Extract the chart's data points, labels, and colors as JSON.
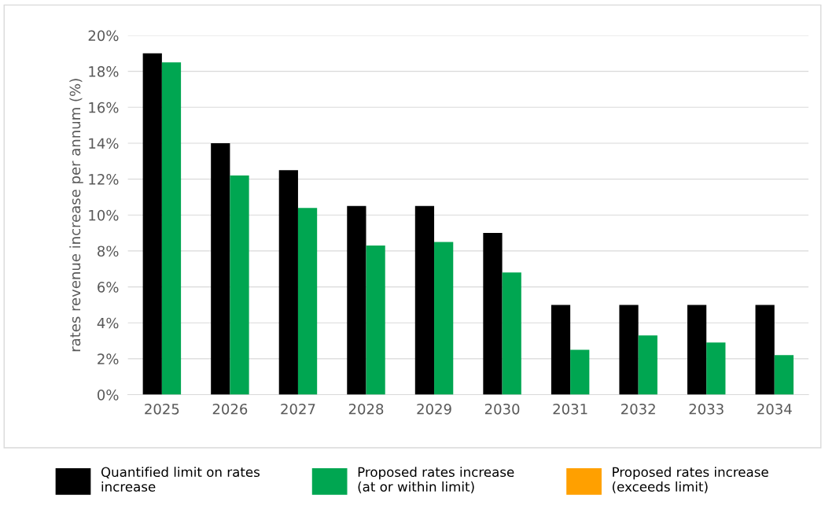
{
  "chart_data": {
    "type": "bar",
    "ylabel": "rates revenue increase per annum (%)",
    "categories": [
      "2025",
      "2026",
      "2027",
      "2028",
      "2029",
      "2030",
      "2031",
      "2032",
      "2033",
      "2034"
    ],
    "series": [
      {
        "name": "Quantified limit on rates\nincrease",
        "color": "#000000",
        "values": [
          19,
          14,
          12.5,
          10.5,
          10.5,
          9,
          5,
          5,
          5,
          5
        ]
      },
      {
        "name": "Proposed rates increase\n(at or within limit)",
        "color": "#00a651",
        "values": [
          18.5,
          12.2,
          10.4,
          8.3,
          8.5,
          6.8,
          2.5,
          3.3,
          2.9,
          2.2
        ]
      },
      {
        "name": "Proposed rates increase\n(exceeds limit)",
        "color": "#ffa000",
        "values": [
          null,
          null,
          null,
          null,
          null,
          null,
          null,
          null,
          null,
          null
        ]
      }
    ],
    "ylim": [
      0,
      20
    ],
    "yticks": [
      {
        "value": 0,
        "label": "0%"
      },
      {
        "value": 2,
        "label": "2%"
      },
      {
        "value": 4,
        "label": "4%"
      },
      {
        "value": 6,
        "label": "6%"
      },
      {
        "value": 8,
        "label": "8%"
      },
      {
        "value": 10,
        "label": "10%"
      },
      {
        "value": 12,
        "label": "12%"
      },
      {
        "value": 14,
        "label": "14%"
      },
      {
        "value": 16,
        "label": "16%"
      },
      {
        "value": 18,
        "label": "18%"
      },
      {
        "value": 20,
        "label": "20%"
      }
    ],
    "grid": "y",
    "legend": "bottom"
  }
}
